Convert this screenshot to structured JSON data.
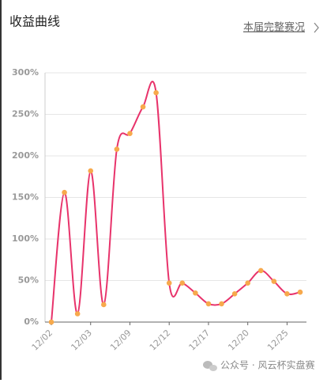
{
  "header": {
    "title": "收益曲线",
    "link": "本届完整赛况"
  },
  "chart_data": {
    "type": "line",
    "categories": [
      "12/02",
      null,
      null,
      "12/03",
      null,
      null,
      "12/09",
      null,
      null,
      "12/12",
      null,
      null,
      "12/17",
      null,
      null,
      "12/20",
      null,
      null,
      "12/25",
      null
    ],
    "series": [
      {
        "color": "#e8336b",
        "values": [
          0,
          156,
          10,
          182,
          21,
          208,
          227,
          259,
          276,
          47,
          47,
          35,
          22,
          22,
          34,
          47,
          62,
          49,
          34,
          36
        ]
      }
    ],
    "marker_color": "#f7a94c",
    "ylim": [
      0,
      300
    ],
    "yticks": [
      {
        "value": 0,
        "label": "0%"
      },
      {
        "value": 50,
        "label": "50%"
      },
      {
        "value": 100,
        "label": "100%"
      },
      {
        "value": 150,
        "label": "150%"
      },
      {
        "value": 200,
        "label": "200%"
      },
      {
        "value": 250,
        "label": "250%"
      },
      {
        "value": 300,
        "label": "300%"
      }
    ],
    "grid": true
  },
  "footer": {
    "watermark": "公众号 · 风云杯实盘赛"
  }
}
